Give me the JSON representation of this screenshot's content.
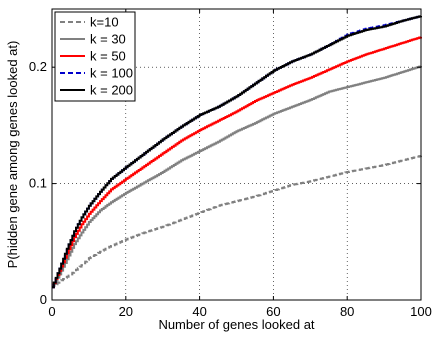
{
  "chart_data": {
    "type": "line",
    "title": "",
    "xlabel": "Number of genes looked at",
    "ylabel": "P(hidden gene among genes looked at)",
    "xlim": [
      0,
      100
    ],
    "ylim": [
      0,
      0.25
    ],
    "xticks": [
      0,
      20,
      40,
      60,
      80,
      100
    ],
    "xtick_labels": [
      "0",
      "20",
      "40",
      "60",
      "80",
      "100"
    ],
    "yticks": [
      0,
      0.1,
      0.2
    ],
    "ytick_labels": [
      "0",
      "0.1",
      "0.2"
    ],
    "grid": true,
    "legend_position": "top-left",
    "series": [
      {
        "name": "k=10",
        "color": "#808080",
        "dash": "dashed",
        "points": [
          [
            0,
            0.011
          ],
          [
            2,
            0.016
          ],
          [
            5,
            0.022
          ],
          [
            8,
            0.03
          ],
          [
            10,
            0.036
          ],
          [
            15,
            0.045
          ],
          [
            20,
            0.052
          ],
          [
            25,
            0.058
          ],
          [
            30,
            0.063
          ],
          [
            35,
            0.069
          ],
          [
            40,
            0.075
          ],
          [
            45,
            0.081
          ],
          [
            50,
            0.085
          ],
          [
            55,
            0.089
          ],
          [
            60,
            0.094
          ],
          [
            65,
            0.099
          ],
          [
            70,
            0.102
          ],
          [
            75,
            0.106
          ],
          [
            80,
            0.11
          ],
          [
            85,
            0.113
          ],
          [
            90,
            0.116
          ],
          [
            95,
            0.12
          ],
          [
            100,
            0.124
          ]
        ]
      },
      {
        "name": "k = 30",
        "color": "#808080",
        "dash": "solid",
        "points": [
          [
            0,
            0.011
          ],
          [
            2,
            0.022
          ],
          [
            4,
            0.035
          ],
          [
            6,
            0.048
          ],
          [
            8,
            0.058
          ],
          [
            10,
            0.067
          ],
          [
            13,
            0.077
          ],
          [
            16,
            0.084
          ],
          [
            20,
            0.092
          ],
          [
            25,
            0.101
          ],
          [
            30,
            0.11
          ],
          [
            35,
            0.12
          ],
          [
            40,
            0.128
          ],
          [
            45,
            0.136
          ],
          [
            50,
            0.145
          ],
          [
            55,
            0.152
          ],
          [
            60,
            0.16
          ],
          [
            65,
            0.166
          ],
          [
            70,
            0.172
          ],
          [
            75,
            0.179
          ],
          [
            80,
            0.183
          ],
          [
            85,
            0.187
          ],
          [
            90,
            0.191
          ],
          [
            95,
            0.196
          ],
          [
            100,
            0.201
          ]
        ]
      },
      {
        "name": "k = 50",
        "color": "#ff0000",
        "dash": "solid",
        "points": [
          [
            0,
            0.011
          ],
          [
            2,
            0.025
          ],
          [
            4,
            0.04
          ],
          [
            6,
            0.054
          ],
          [
            8,
            0.065
          ],
          [
            10,
            0.074
          ],
          [
            13,
            0.085
          ],
          [
            16,
            0.095
          ],
          [
            20,
            0.104
          ],
          [
            25,
            0.115
          ],
          [
            30,
            0.126
          ],
          [
            35,
            0.137
          ],
          [
            40,
            0.146
          ],
          [
            45,
            0.154
          ],
          [
            50,
            0.162
          ],
          [
            55,
            0.171
          ],
          [
            60,
            0.178
          ],
          [
            65,
            0.185
          ],
          [
            70,
            0.191
          ],
          [
            75,
            0.198
          ],
          [
            80,
            0.205
          ],
          [
            85,
            0.211
          ],
          [
            90,
            0.216
          ],
          [
            95,
            0.221
          ],
          [
            100,
            0.226
          ]
        ]
      },
      {
        "name": "k = 100",
        "color": "#0000cc",
        "dash": "dashed",
        "points": [
          [
            0,
            0.011
          ],
          [
            2,
            0.027
          ],
          [
            4,
            0.044
          ],
          [
            6,
            0.059
          ],
          [
            8,
            0.071
          ],
          [
            10,
            0.081
          ],
          [
            13,
            0.093
          ],
          [
            16,
            0.104
          ],
          [
            20,
            0.114
          ],
          [
            25,
            0.126
          ],
          [
            30,
            0.138
          ],
          [
            35,
            0.149
          ],
          [
            40,
            0.159
          ],
          [
            45,
            0.166
          ],
          [
            50,
            0.175
          ],
          [
            55,
            0.186
          ],
          [
            60,
            0.197
          ],
          [
            65,
            0.205
          ],
          [
            70,
            0.211
          ],
          [
            75,
            0.219
          ],
          [
            80,
            0.228
          ],
          [
            85,
            0.233
          ],
          [
            90,
            0.236
          ],
          [
            95,
            0.24
          ],
          [
            100,
            0.244
          ]
        ]
      },
      {
        "name": "k = 200",
        "color": "#000000",
        "dash": "solid",
        "points": [
          [
            0,
            0.011
          ],
          [
            2,
            0.027
          ],
          [
            4,
            0.044
          ],
          [
            6,
            0.059
          ],
          [
            8,
            0.071
          ],
          [
            10,
            0.081
          ],
          [
            13,
            0.093
          ],
          [
            16,
            0.104
          ],
          [
            20,
            0.114
          ],
          [
            25,
            0.126
          ],
          [
            30,
            0.138
          ],
          [
            35,
            0.149
          ],
          [
            40,
            0.159
          ],
          [
            45,
            0.166
          ],
          [
            50,
            0.175
          ],
          [
            55,
            0.186
          ],
          [
            60,
            0.197
          ],
          [
            65,
            0.205
          ],
          [
            70,
            0.211
          ],
          [
            75,
            0.219
          ],
          [
            80,
            0.227
          ],
          [
            85,
            0.232
          ],
          [
            90,
            0.235
          ],
          [
            95,
            0.24
          ],
          [
            100,
            0.244
          ]
        ]
      }
    ]
  }
}
